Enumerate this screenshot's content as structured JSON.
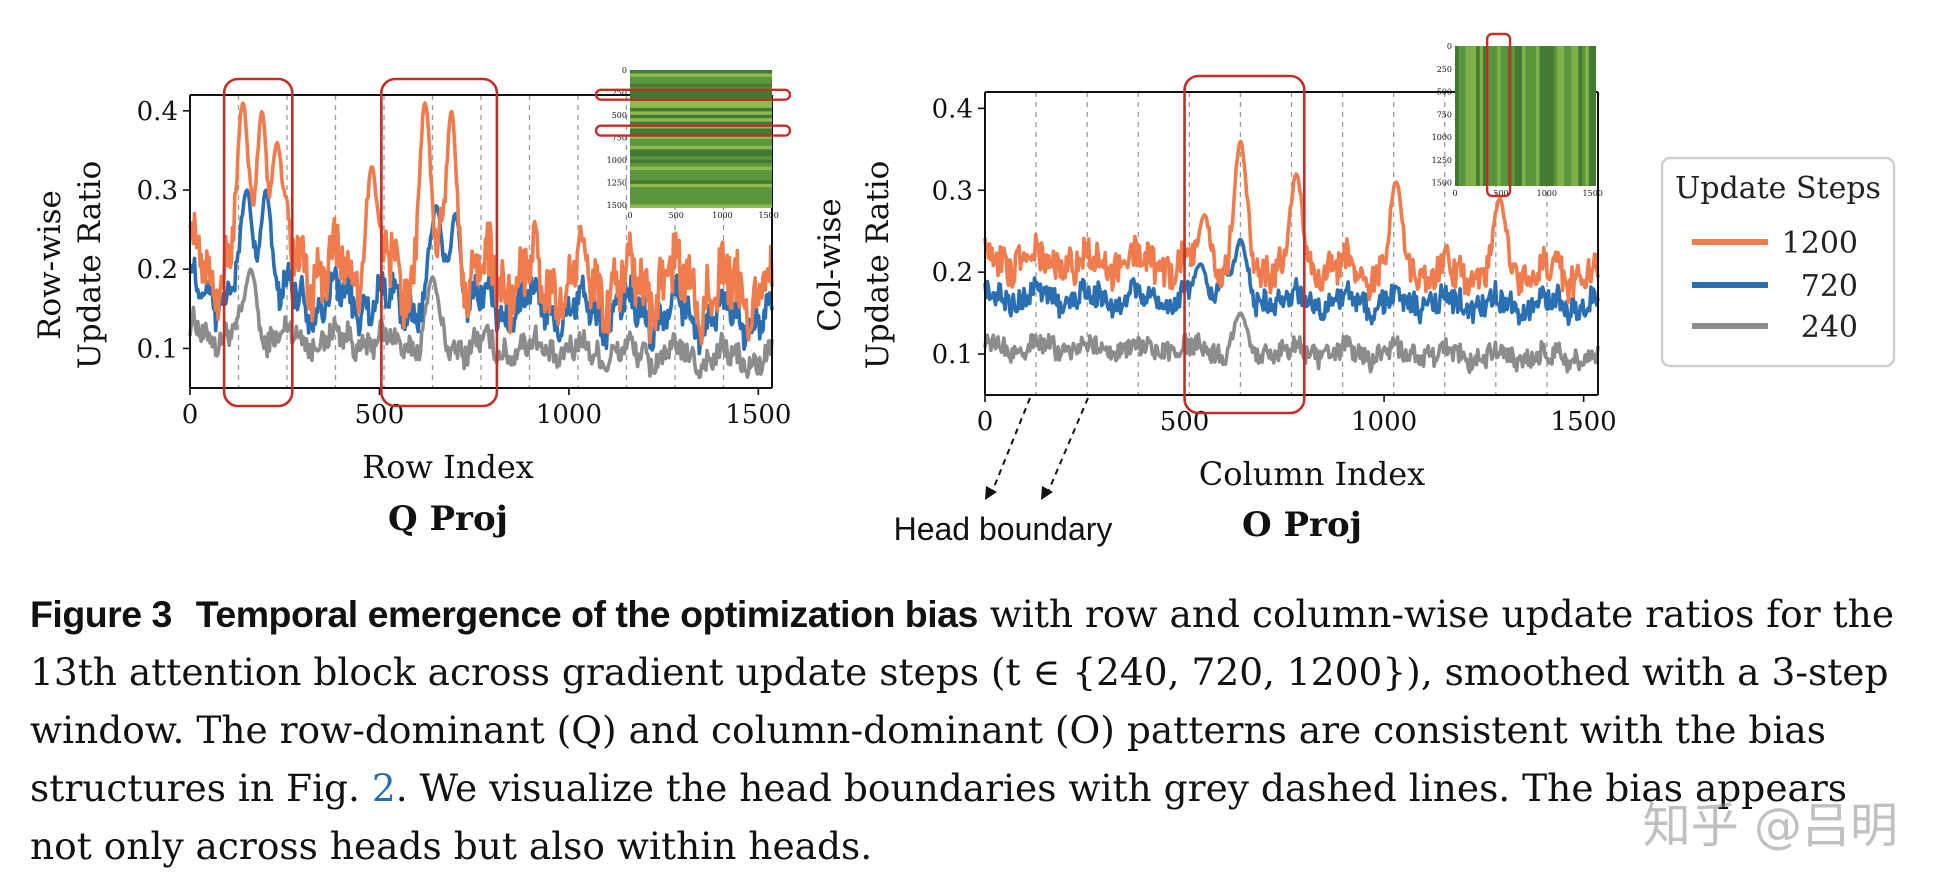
{
  "colors": {
    "s1200": "#f07c4e",
    "s720": "#2a6fb2",
    "s240": "#8c8c8c",
    "highlight": "#c03028",
    "heatmap": "#4f8a3a"
  },
  "chart_data": [
    {
      "type": "line",
      "xlabel": "Row Index",
      "ylabel_line1": "Row-wise",
      "ylabel_line2": "Update Ratio",
      "subtitle": "Q Proj",
      "xlim": [
        0,
        1536
      ],
      "ylim": [
        0.05,
        0.42
      ],
      "xticks": [
        0,
        500,
        1000,
        1500
      ],
      "yticks": [
        0.1,
        0.2,
        0.3,
        0.4
      ],
      "head_boundaries": [
        128,
        256,
        384,
        512,
        640,
        768,
        896,
        1024,
        1152,
        1280,
        1408
      ],
      "highlight_ranges": [
        [
          90,
          270
        ],
        [
          505,
          810
        ]
      ],
      "inset": {
        "ticks": [
          0,
          250,
          500,
          750,
          1000,
          1250,
          1500
        ],
        "xticks": [
          0,
          500,
          1000,
          1500
        ],
        "highlight_rows": [
          [
            220,
            330
          ],
          [
            620,
            730
          ]
        ]
      },
      "series": [
        {
          "name": "1200",
          "base": 0.21,
          "tail": 0.17,
          "amp": 0.05,
          "noise": 0.035,
          "peaks": [
            [
              140,
              0.41
            ],
            [
              190,
              0.4
            ],
            [
              230,
              0.36
            ],
            [
              620,
              0.41
            ],
            [
              690,
              0.4
            ],
            [
              480,
              0.33
            ]
          ]
        },
        {
          "name": "720",
          "base": 0.17,
          "tail": 0.14,
          "amp": 0.035,
          "noise": 0.02,
          "peaks": [
            [
              150,
              0.3
            ],
            [
              200,
              0.3
            ],
            [
              650,
              0.28
            ],
            [
              700,
              0.27
            ]
          ]
        },
        {
          "name": "240",
          "base": 0.12,
          "tail": 0.085,
          "amp": 0.02,
          "noise": 0.015,
          "peaks": [
            [
              160,
              0.2
            ],
            [
              640,
              0.19
            ]
          ]
        }
      ]
    },
    {
      "type": "line",
      "xlabel": "Column Index",
      "ylabel_line1": "Col-wise",
      "ylabel_line2": "Update Ratio",
      "subtitle": "O Proj",
      "xlim": [
        0,
        1536
      ],
      "ylim": [
        0.05,
        0.42
      ],
      "xticks": [
        0,
        500,
        1000,
        1500
      ],
      "yticks": [
        0.1,
        0.2,
        0.3,
        0.4
      ],
      "head_boundaries": [
        128,
        256,
        384,
        512,
        640,
        768,
        896,
        1024,
        1152,
        1280,
        1408
      ],
      "highlight_ranges": [
        [
          500,
          800
        ]
      ],
      "inset": {
        "ticks": [
          0,
          250,
          500,
          750,
          1000,
          1250,
          1500
        ],
        "xticks": [
          0,
          500,
          1000,
          1500
        ],
        "highlight_cols": [
          [
            350,
            600
          ]
        ]
      },
      "series": [
        {
          "name": "1200",
          "base": 0.215,
          "tail": 0.195,
          "amp": 0.02,
          "noise": 0.02,
          "peaks": [
            [
              640,
              0.36
            ],
            [
              780,
              0.32
            ],
            [
              1030,
              0.31
            ],
            [
              1290,
              0.29
            ],
            [
              550,
              0.27
            ]
          ]
        },
        {
          "name": "720",
          "base": 0.17,
          "tail": 0.16,
          "amp": 0.015,
          "noise": 0.015,
          "peaks": [
            [
              540,
              0.21
            ],
            [
              600,
              0.2
            ],
            [
              640,
              0.24
            ]
          ]
        },
        {
          "name": "240",
          "base": 0.11,
          "tail": 0.095,
          "amp": 0.012,
          "noise": 0.012,
          "peaks": [
            [
              640,
              0.15
            ]
          ]
        }
      ]
    }
  ],
  "legend": {
    "title": "Update Steps",
    "items": [
      "1200",
      "720",
      "240"
    ]
  },
  "annotation": {
    "head_boundary": "Head boundary"
  },
  "caption": {
    "label": "Figure 3",
    "bold_title": "Temporal emergence of the optimization bias",
    "text1": " with row and column-wise update ratios for the 13th attention block across gradient update steps (t ∈ {240, 720, 1200}), smoothed with a 3-step window. The row-dominant (Q) and column-dominant (O) patterns are consistent with the bias structures in Fig. ",
    "ref": "2",
    "text2": ". We visualize the head boundaries with grey dashed lines. The bias appears not only across heads but also within heads."
  },
  "watermark": "知乎 @吕明"
}
